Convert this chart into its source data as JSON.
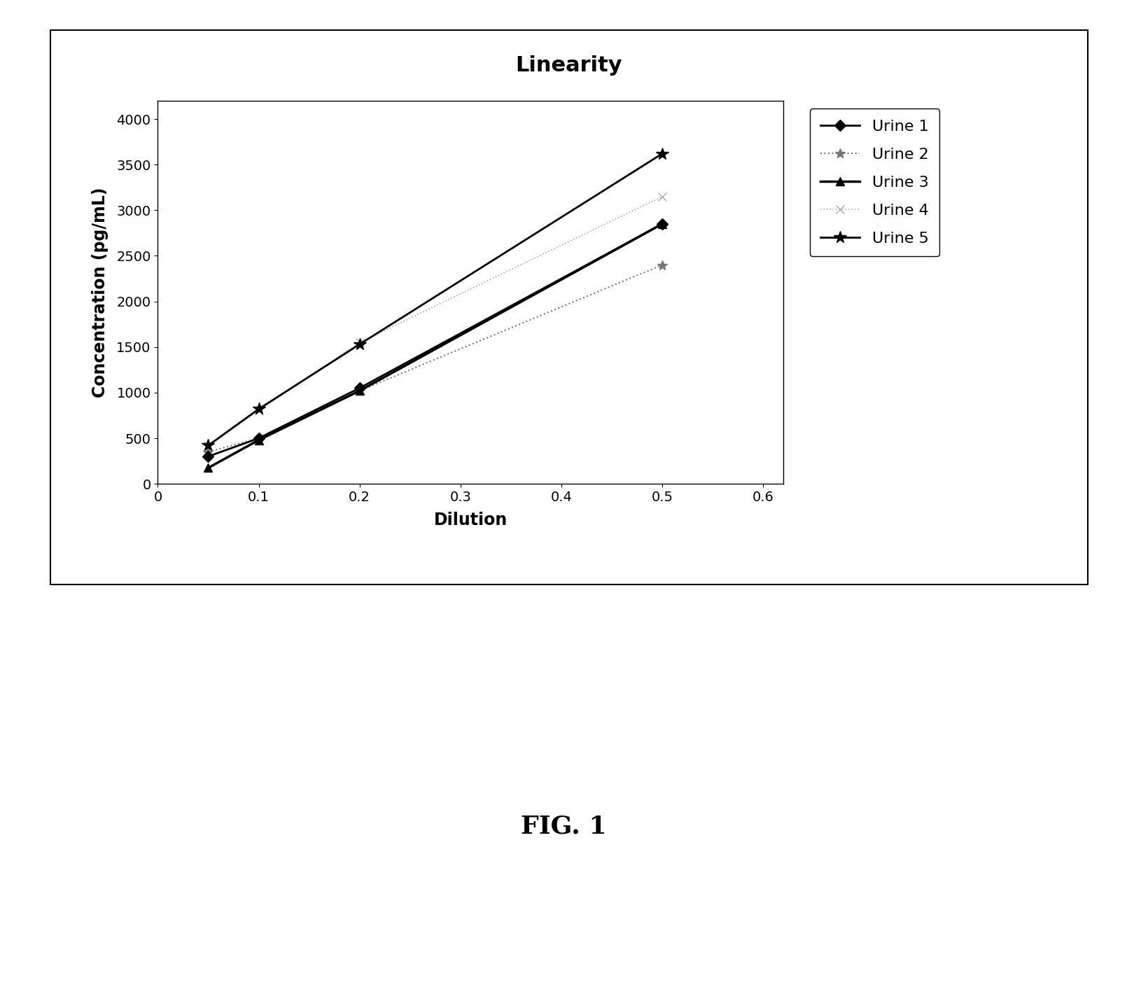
{
  "title": "Linearity",
  "xlabel": "Dilution",
  "ylabel": "Concentration (pg/mL)",
  "x": [
    0.05,
    0.1,
    0.2,
    0.5
  ],
  "series": [
    {
      "name": "Urine 1",
      "y": [
        300,
        500,
        1050,
        2850
      ],
      "color": "#000000",
      "linestyle": "-",
      "marker": "D",
      "markersize": 8,
      "linewidth": 2.0,
      "zorder": 5,
      "markerfacecolor": "#000000"
    },
    {
      "name": "Urine 2",
      "y": [
        350,
        500,
        1020,
        2400
      ],
      "color": "#777777",
      "linestyle": ":",
      "marker": "*",
      "markersize": 10,
      "linewidth": 1.5,
      "zorder": 4,
      "markerfacecolor": "#777777"
    },
    {
      "name": "Urine 3",
      "y": [
        175,
        480,
        1020,
        2850
      ],
      "color": "#000000",
      "linestyle": "-",
      "marker": "^",
      "markersize": 9,
      "linewidth": 2.5,
      "zorder": 6,
      "markerfacecolor": "#000000"
    },
    {
      "name": "Urine 4",
      "y": [
        420,
        800,
        1550,
        3150
      ],
      "color": "#aaaaaa",
      "linestyle": ":",
      "marker": "x",
      "markersize": 9,
      "linewidth": 1.2,
      "zorder": 3,
      "markerfacecolor": "#aaaaaa"
    },
    {
      "name": "Urine 5",
      "y": [
        420,
        820,
        1530,
        3620
      ],
      "color": "#000000",
      "linestyle": "-",
      "marker": "*",
      "markersize": 13,
      "linewidth": 2.0,
      "zorder": 7,
      "markerfacecolor": "#000000"
    }
  ],
  "xlim": [
    0.0,
    0.62
  ],
  "ylim": [
    0,
    4200
  ],
  "yticks": [
    0,
    500,
    1000,
    1500,
    2000,
    2500,
    3000,
    3500,
    4000
  ],
  "xticks": [
    0.0,
    0.1,
    0.2,
    0.3,
    0.4,
    0.5,
    0.6
  ],
  "xtick_labels": [
    "0",
    "0.1",
    "0.2",
    "0.3",
    "0.4",
    "0.5",
    "0.6"
  ],
  "figsize": [
    16.1,
    14.4
  ],
  "dpi": 100,
  "title_fontsize": 22,
  "label_fontsize": 17,
  "tick_fontsize": 14,
  "legend_fontsize": 16,
  "fig_caption": "FIG. 1",
  "background_color": "#ffffff"
}
